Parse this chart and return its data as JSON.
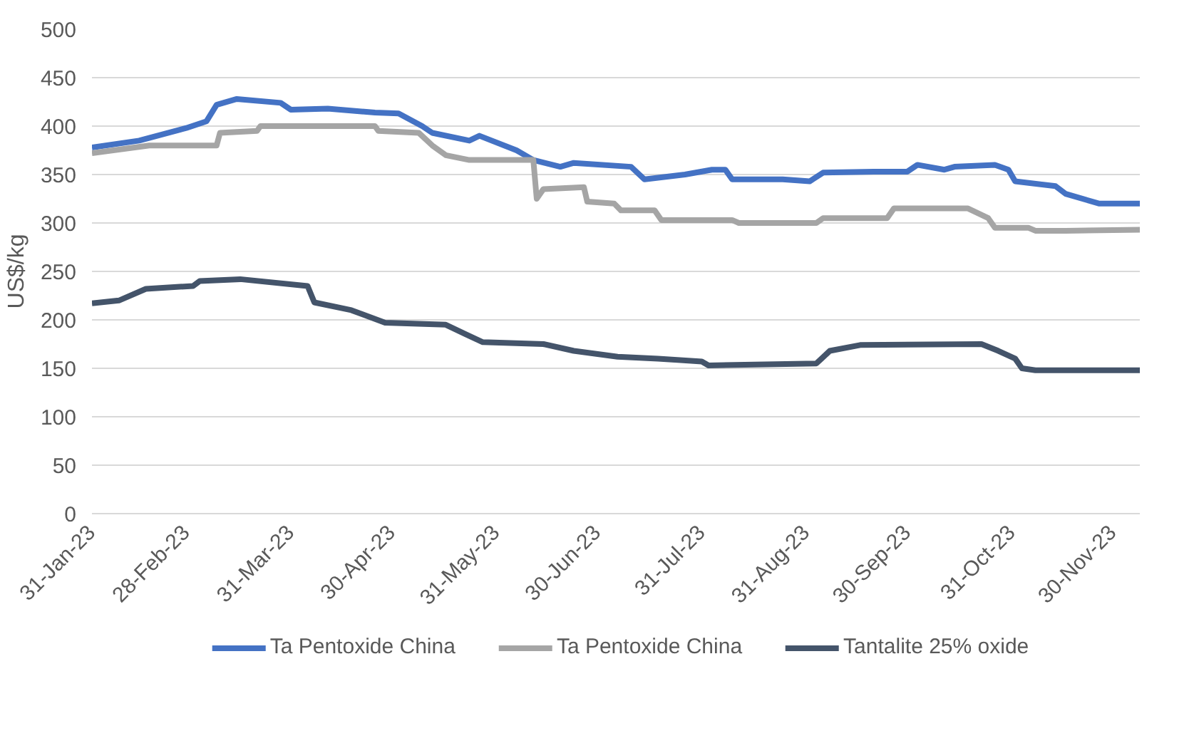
{
  "chart_data": {
    "type": "line",
    "ylabel": "US$/kg",
    "ylim": [
      0,
      500
    ],
    "yticks": [
      0,
      50,
      100,
      150,
      200,
      250,
      300,
      350,
      400,
      450,
      500
    ],
    "xlim": [
      "2023-01-31",
      "2023-12-08"
    ],
    "xticks": [
      {
        "value": "2023-01-31",
        "label": "31-Jan-23"
      },
      {
        "value": "2023-02-28",
        "label": "28-Feb-23"
      },
      {
        "value": "2023-03-31",
        "label": "31-Mar-23"
      },
      {
        "value": "2023-04-30",
        "label": "30-Apr-23"
      },
      {
        "value": "2023-05-31",
        "label": "31-May-23"
      },
      {
        "value": "2023-06-30",
        "label": "30-Jun-23"
      },
      {
        "value": "2023-07-31",
        "label": "31-Jul-23"
      },
      {
        "value": "2023-08-31",
        "label": "31-Aug-23"
      },
      {
        "value": "2023-09-30",
        "label": "30-Sep-23"
      },
      {
        "value": "2023-10-31",
        "label": "31-Oct-23"
      },
      {
        "value": "2023-11-30",
        "label": "30-Nov-23"
      }
    ],
    "grid": "y",
    "legend": "bottom",
    "line_style": "solid",
    "marker": "none",
    "series": [
      {
        "name": "Ta Pentoxide China",
        "color": "#4472c4",
        "x": [
          "2023-01-31",
          "2023-02-14",
          "2023-02-28",
          "2023-03-06",
          "2023-03-09",
          "2023-03-15",
          "2023-03-28",
          "2023-03-31",
          "2023-04-11",
          "2023-04-25",
          "2023-05-02",
          "2023-05-09",
          "2023-05-12",
          "2023-05-23",
          "2023-05-26",
          "2023-06-06",
          "2023-06-11",
          "2023-06-19",
          "2023-06-23",
          "2023-07-10",
          "2023-07-14",
          "2023-07-26",
          "2023-08-03",
          "2023-08-07",
          "2023-08-09",
          "2023-08-24",
          "2023-09-01",
          "2023-09-05",
          "2023-09-20",
          "2023-09-30",
          "2023-10-03",
          "2023-10-11",
          "2023-10-14",
          "2023-10-26",
          "2023-10-30",
          "2023-11-01",
          "2023-11-13",
          "2023-11-16",
          "2023-11-26",
          "2023-12-08"
        ],
        "values": [
          378,
          385,
          398,
          405,
          422,
          428,
          424,
          417,
          418,
          414,
          413,
          400,
          393,
          385,
          390,
          375,
          365,
          358,
          362,
          358,
          345,
          350,
          355,
          355,
          345,
          345,
          343,
          352,
          353,
          353,
          360,
          355,
          358,
          360,
          355,
          343,
          338,
          330,
          320,
          320
        ]
      },
      {
        "name": "Ta Pentoxide China",
        "color": "#a5a5a5",
        "x": [
          "2023-01-31",
          "2023-02-17",
          "2023-03-09",
          "2023-03-10",
          "2023-03-21",
          "2023-03-22",
          "2023-04-25",
          "2023-04-26",
          "2023-05-08",
          "2023-05-12",
          "2023-05-16",
          "2023-05-23",
          "2023-06-11",
          "2023-06-12",
          "2023-06-14",
          "2023-06-26",
          "2023-06-27",
          "2023-07-05",
          "2023-07-07",
          "2023-07-17",
          "2023-07-19",
          "2023-08-09",
          "2023-08-11",
          "2023-09-03",
          "2023-09-05",
          "2023-09-24",
          "2023-09-26",
          "2023-10-18",
          "2023-10-24",
          "2023-10-26",
          "2023-11-05",
          "2023-11-07",
          "2023-11-16",
          "2023-12-08"
        ],
        "values": [
          372,
          380,
          380,
          393,
          395,
          400,
          400,
          395,
          393,
          380,
          370,
          365,
          365,
          325,
          335,
          337,
          322,
          320,
          313,
          313,
          303,
          303,
          300,
          300,
          305,
          305,
          315,
          315,
          305,
          295,
          295,
          292,
          292,
          293
        ]
      },
      {
        "name": "Tantalite 25% oxide",
        "color": "#44546a",
        "x": [
          "2023-01-31",
          "2023-02-08",
          "2023-02-16",
          "2023-03-02",
          "2023-03-04",
          "2023-03-16",
          "2023-04-05",
          "2023-04-07",
          "2023-04-18",
          "2023-04-28",
          "2023-05-16",
          "2023-05-22",
          "2023-05-27",
          "2023-06-14",
          "2023-06-23",
          "2023-07-06",
          "2023-07-18",
          "2023-07-31",
          "2023-08-02",
          "2023-09-03",
          "2023-09-07",
          "2023-09-16",
          "2023-10-22",
          "2023-10-27",
          "2023-11-01",
          "2023-11-03",
          "2023-11-07",
          "2023-12-08"
        ],
        "values": [
          217,
          220,
          232,
          235,
          240,
          242,
          235,
          218,
          210,
          197,
          195,
          185,
          177,
          175,
          168,
          162,
          160,
          157,
          153,
          155,
          168,
          174,
          175,
          168,
          160,
          150,
          148,
          148
        ]
      }
    ]
  }
}
